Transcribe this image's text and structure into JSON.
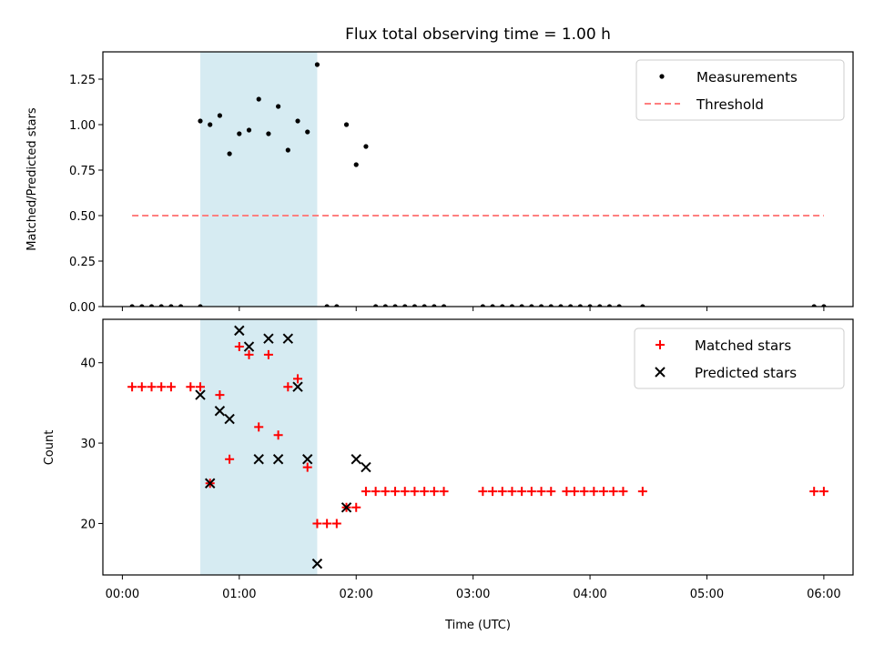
{
  "chart_data": [
    {
      "type": "scatter",
      "title": "Flux total observing time = 1.00 h",
      "ylabel": "Matched/Predicted stars",
      "xlabel": "",
      "xlim": [
        "-00:10",
        "06:15"
      ],
      "ylim": [
        0,
        1.4
      ],
      "yticks": [
        "0.00",
        "0.25",
        "0.50",
        "0.75",
        "1.00",
        "1.25"
      ],
      "xticks": [
        "00:00",
        "01:00",
        "02:00",
        "03:00",
        "04:00",
        "05:00",
        "06:00"
      ],
      "show_xticklabels": false,
      "highlight_span": [
        "00:40",
        "01:40"
      ],
      "legend_position": "upper right",
      "series": [
        {
          "name": "Measurements",
          "marker": "dot",
          "color": "#000000",
          "points": [
            [
              "00:05",
              0
            ],
            [
              "00:10",
              0
            ],
            [
              "00:15",
              0
            ],
            [
              "00:20",
              0
            ],
            [
              "00:25",
              0
            ],
            [
              "00:30",
              0
            ],
            [
              "00:40",
              0
            ],
            [
              "00:40",
              1.02
            ],
            [
              "00:45",
              1.0
            ],
            [
              "00:50",
              1.05
            ],
            [
              "00:55",
              0.84
            ],
            [
              "01:00",
              0.95
            ],
            [
              "01:05",
              0.97
            ],
            [
              "01:10",
              1.14
            ],
            [
              "01:15",
              0.95
            ],
            [
              "01:20",
              1.1
            ],
            [
              "01:25",
              0.86
            ],
            [
              "01:30",
              1.02
            ],
            [
              "01:35",
              0.96
            ],
            [
              "01:40",
              1.33
            ],
            [
              "01:45",
              0
            ],
            [
              "01:50",
              0
            ],
            [
              "01:55",
              1.0
            ],
            [
              "02:00",
              0.78
            ],
            [
              "02:05",
              0.88
            ],
            [
              "02:10",
              0
            ],
            [
              "02:15",
              0
            ],
            [
              "02:20",
              0
            ],
            [
              "02:25",
              0
            ],
            [
              "02:30",
              0
            ],
            [
              "02:35",
              0
            ],
            [
              "02:40",
              0
            ],
            [
              "02:45",
              0
            ],
            [
              "03:05",
              0
            ],
            [
              "03:10",
              0
            ],
            [
              "03:15",
              0
            ],
            [
              "03:20",
              0
            ],
            [
              "03:25",
              0
            ],
            [
              "03:30",
              0
            ],
            [
              "03:35",
              0
            ],
            [
              "03:40",
              0
            ],
            [
              "03:45",
              0
            ],
            [
              "03:50",
              0
            ],
            [
              "03:55",
              0
            ],
            [
              "04:00",
              0
            ],
            [
              "04:05",
              0
            ],
            [
              "04:10",
              0
            ],
            [
              "04:15",
              0
            ],
            [
              "04:27",
              0
            ],
            [
              "05:55",
              0
            ],
            [
              "06:00",
              0
            ]
          ]
        },
        {
          "name": "Threshold",
          "marker": "dashed-line",
          "color": "#ff7f7f",
          "points": [
            [
              "00:05",
              0.5
            ],
            [
              "06:00",
              0.5
            ]
          ]
        }
      ]
    },
    {
      "type": "scatter",
      "title": "",
      "ylabel": "Count",
      "xlabel": "Time (UTC)",
      "xlim": [
        "-00:10",
        "06:15"
      ],
      "ylim": [
        13.6,
        45.4
      ],
      "yticks": [
        "20",
        "30",
        "40"
      ],
      "xticks": [
        "00:00",
        "01:00",
        "02:00",
        "03:00",
        "04:00",
        "05:00",
        "06:00"
      ],
      "show_xticklabels": true,
      "highlight_span": [
        "00:40",
        "01:40"
      ],
      "legend_position": "upper right",
      "series": [
        {
          "name": "Matched stars",
          "marker": "plus",
          "color": "#ff0000",
          "points": [
            [
              "00:05",
              37
            ],
            [
              "00:10",
              37
            ],
            [
              "00:15",
              37
            ],
            [
              "00:20",
              37
            ],
            [
              "00:25",
              37
            ],
            [
              "00:35",
              37
            ],
            [
              "00:40",
              37
            ],
            [
              "00:45",
              25
            ],
            [
              "00:50",
              36
            ],
            [
              "00:55",
              28
            ],
            [
              "01:00",
              42
            ],
            [
              "01:05",
              41
            ],
            [
              "01:10",
              32
            ],
            [
              "01:15",
              41
            ],
            [
              "01:20",
              31
            ],
            [
              "01:25",
              37
            ],
            [
              "01:30",
              38
            ],
            [
              "01:35",
              27
            ],
            [
              "01:40",
              20
            ],
            [
              "01:45",
              20
            ],
            [
              "01:50",
              20
            ],
            [
              "01:55",
              22
            ],
            [
              "02:00",
              22
            ],
            [
              "02:05",
              24
            ],
            [
              "02:10",
              24
            ],
            [
              "02:15",
              24
            ],
            [
              "02:20",
              24
            ],
            [
              "02:25",
              24
            ],
            [
              "02:30",
              24
            ],
            [
              "02:35",
              24
            ],
            [
              "02:40",
              24
            ],
            [
              "02:45",
              24
            ],
            [
              "03:05",
              24
            ],
            [
              "03:10",
              24
            ],
            [
              "03:15",
              24
            ],
            [
              "03:20",
              24
            ],
            [
              "03:25",
              24
            ],
            [
              "03:30",
              24
            ],
            [
              "03:35",
              24
            ],
            [
              "03:40",
              24
            ],
            [
              "03:48",
              24
            ],
            [
              "03:52",
              24
            ],
            [
              "03:57",
              24
            ],
            [
              "04:02",
              24
            ],
            [
              "04:07",
              24
            ],
            [
              "04:12",
              24
            ],
            [
              "04:17",
              24
            ],
            [
              "04:27",
              24
            ],
            [
              "05:55",
              24
            ],
            [
              "06:00",
              24
            ]
          ]
        },
        {
          "name": "Predicted stars",
          "marker": "x",
          "color": "#000000",
          "points": [
            [
              "00:40",
              36
            ],
            [
              "00:45",
              25
            ],
            [
              "00:50",
              34
            ],
            [
              "00:55",
              33
            ],
            [
              "01:00",
              44
            ],
            [
              "01:05",
              42
            ],
            [
              "01:10",
              28
            ],
            [
              "01:15",
              43
            ],
            [
              "01:20",
              28
            ],
            [
              "01:25",
              43
            ],
            [
              "01:30",
              37
            ],
            [
              "01:35",
              28
            ],
            [
              "01:40",
              15
            ],
            [
              "01:55",
              22
            ],
            [
              "02:00",
              28
            ],
            [
              "02:05",
              27
            ]
          ]
        }
      ]
    }
  ]
}
